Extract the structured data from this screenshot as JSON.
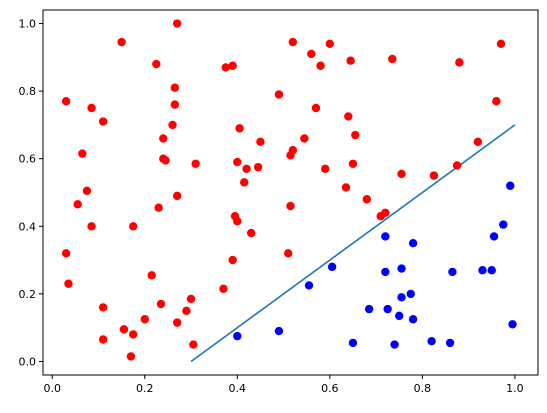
{
  "chart_data": {
    "type": "scatter",
    "title": "",
    "xlabel": "",
    "ylabel": "",
    "xlim": [
      -0.02,
      1.05
    ],
    "ylim": [
      -0.04,
      1.04
    ],
    "grid": false,
    "x_ticks": [
      "0.0",
      "0.2",
      "0.4",
      "0.6",
      "0.8",
      "1.0"
    ],
    "y_ticks": [
      "0.0",
      "0.2",
      "0.4",
      "0.6",
      "0.8",
      "1.0"
    ],
    "series": [
      {
        "color": "#ff0000",
        "points": [
          [
            0.03,
            0.77
          ],
          [
            0.03,
            0.32
          ],
          [
            0.035,
            0.23
          ],
          [
            0.055,
            0.465
          ],
          [
            0.065,
            0.615
          ],
          [
            0.075,
            0.505
          ],
          [
            0.085,
            0.75
          ],
          [
            0.085,
            0.4
          ],
          [
            0.11,
            0.71
          ],
          [
            0.11,
            0.16
          ],
          [
            0.11,
            0.065
          ],
          [
            0.15,
            0.945
          ],
          [
            0.155,
            0.095
          ],
          [
            0.17,
            0.015
          ],
          [
            0.175,
            0.08
          ],
          [
            0.175,
            0.4
          ],
          [
            0.2,
            0.125
          ],
          [
            0.215,
            0.255
          ],
          [
            0.225,
            0.88
          ],
          [
            0.23,
            0.455
          ],
          [
            0.235,
            0.17
          ],
          [
            0.24,
            0.66
          ],
          [
            0.24,
            0.6
          ],
          [
            0.245,
            0.595
          ],
          [
            0.26,
            0.7
          ],
          [
            0.265,
            0.81
          ],
          [
            0.265,
            0.76
          ],
          [
            0.27,
            0.49
          ],
          [
            0.27,
            0.115
          ],
          [
            0.27,
            1.0
          ],
          [
            0.29,
            0.15
          ],
          [
            0.3,
            0.185
          ],
          [
            0.305,
            0.05
          ],
          [
            0.31,
            0.585
          ],
          [
            0.37,
            0.215
          ],
          [
            0.375,
            0.87
          ],
          [
            0.39,
            0.3
          ],
          [
            0.39,
            0.875
          ],
          [
            0.395,
            0.43
          ],
          [
            0.4,
            0.59
          ],
          [
            0.4,
            0.415
          ],
          [
            0.405,
            0.69
          ],
          [
            0.415,
            0.53
          ],
          [
            0.42,
            0.57
          ],
          [
            0.43,
            0.38
          ],
          [
            0.445,
            0.575
          ],
          [
            0.45,
            0.65
          ],
          [
            0.49,
            0.79
          ],
          [
            0.51,
            0.32
          ],
          [
            0.515,
            0.46
          ],
          [
            0.515,
            0.61
          ],
          [
            0.52,
            0.625
          ],
          [
            0.52,
            0.945
          ],
          [
            0.545,
            0.66
          ],
          [
            0.56,
            0.91
          ],
          [
            0.57,
            0.75
          ],
          [
            0.58,
            0.875
          ],
          [
            0.59,
            0.57
          ],
          [
            0.6,
            0.94
          ],
          [
            0.635,
            0.515
          ],
          [
            0.64,
            0.725
          ],
          [
            0.645,
            0.89
          ],
          [
            0.65,
            0.585
          ],
          [
            0.655,
            0.67
          ],
          [
            0.68,
            0.48
          ],
          [
            0.71,
            0.43
          ],
          [
            0.72,
            0.44
          ],
          [
            0.735,
            0.895
          ],
          [
            0.755,
            0.555
          ],
          [
            0.825,
            0.55
          ],
          [
            0.875,
            0.58
          ],
          [
            0.88,
            0.885
          ],
          [
            0.92,
            0.65
          ],
          [
            0.96,
            0.77
          ],
          [
            0.97,
            0.94
          ]
        ]
      },
      {
        "color": "#0000ff",
        "points": [
          [
            0.4,
            0.075
          ],
          [
            0.49,
            0.09
          ],
          [
            0.555,
            0.225
          ],
          [
            0.605,
            0.28
          ],
          [
            0.65,
            0.055
          ],
          [
            0.685,
            0.155
          ],
          [
            0.72,
            0.37
          ],
          [
            0.72,
            0.265
          ],
          [
            0.725,
            0.155
          ],
          [
            0.74,
            0.05
          ],
          [
            0.75,
            0.135
          ],
          [
            0.755,
            0.275
          ],
          [
            0.755,
            0.19
          ],
          [
            0.775,
            0.2
          ],
          [
            0.78,
            0.35
          ],
          [
            0.78,
            0.125
          ],
          [
            0.82,
            0.06
          ],
          [
            0.86,
            0.055
          ],
          [
            0.865,
            0.265
          ],
          [
            0.93,
            0.27
          ],
          [
            0.95,
            0.27
          ],
          [
            0.955,
            0.37
          ],
          [
            0.975,
            0.405
          ],
          [
            0.99,
            0.52
          ],
          [
            0.995,
            0.11
          ]
        ]
      },
      {
        "type": "line",
        "color": "#1f77b4",
        "points": [
          [
            0.3,
            0.0
          ],
          [
            1.0,
            0.7
          ]
        ]
      }
    ]
  }
}
